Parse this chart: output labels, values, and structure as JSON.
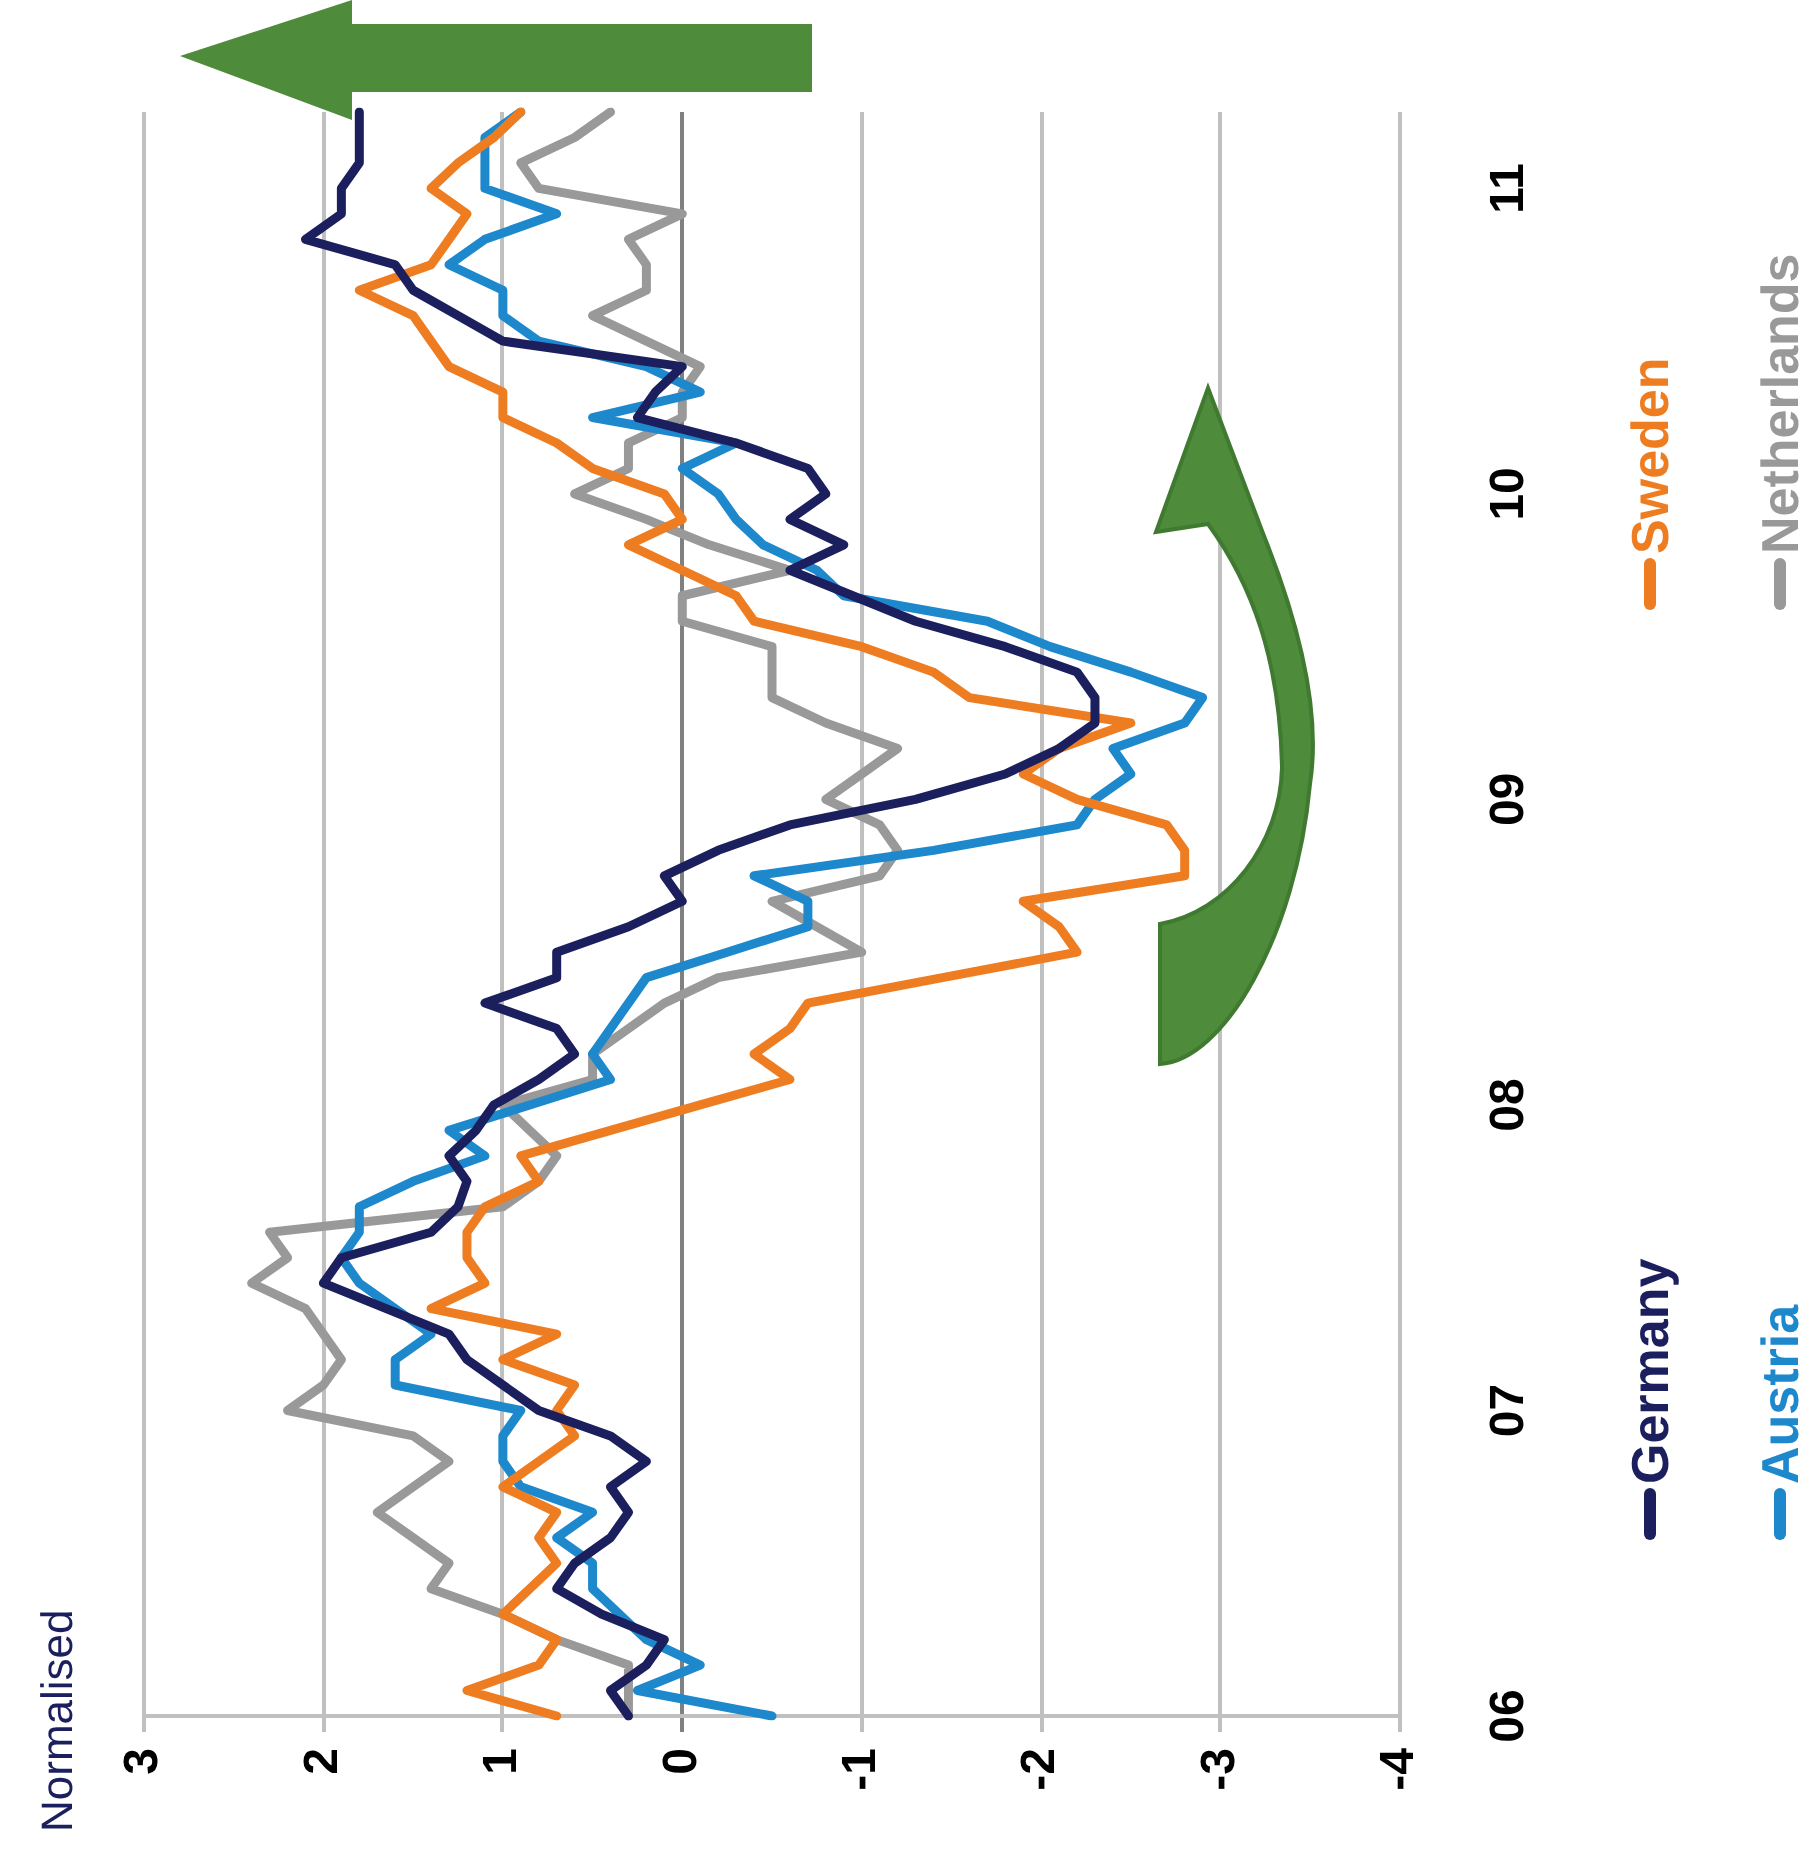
{
  "chart_data": {
    "type": "line",
    "orientation": "horizontal",
    "annotations": [
      "Normalised"
    ],
    "categories": [
      null,
      null,
      null,
      "11",
      null,
      null,
      null,
      null,
      null,
      null,
      null,
      null,
      null,
      null,
      null,
      "10",
      null,
      null,
      null,
      null,
      null,
      null,
      null,
      null,
      null,
      null,
      null,
      "09",
      null,
      null,
      null,
      null,
      null,
      null,
      null,
      null,
      null,
      null,
      null,
      "08",
      null,
      null,
      null,
      null,
      null,
      null,
      null,
      null,
      null,
      null,
      null,
      "07",
      null,
      null,
      null,
      null,
      null,
      null,
      null,
      null,
      null,
      null,
      null,
      "06"
    ],
    "series": [
      {
        "name": "Germany",
        "color": "#1b1f5e",
        "values": [
          1.8,
          1.8,
          1.8,
          1.9,
          1.9,
          2.1,
          1.6,
          1.5,
          1.25,
          1.0,
          0.0,
          0.15,
          0.25,
          -0.3,
          -0.7,
          -0.8,
          -0.6,
          -0.9,
          -0.6,
          -0.95,
          -1.3,
          -1.8,
          -2.2,
          -2.3,
          -2.3,
          -2.1,
          -1.8,
          -1.3,
          -0.6,
          -0.2,
          0.1,
          0.0,
          0.3,
          0.7,
          0.7,
          1.1,
          0.7,
          0.6,
          0.8,
          1.05,
          1.15,
          1.3,
          1.2,
          1.25,
          1.4,
          1.9,
          2.0,
          1.65,
          1.3,
          1.2,
          1.0,
          0.8,
          0.4,
          0.2,
          0.4,
          0.3,
          0.4,
          0.6,
          0.7,
          0.45,
          0.1,
          0.2,
          0.4,
          0.3
        ]
      },
      {
        "name": "Sweden",
        "color": "#ee7d22",
        "values": [
          0.9,
          1.05,
          1.25,
          1.4,
          1.2,
          1.3,
          1.4,
          1.8,
          1.5,
          1.4,
          1.3,
          1.0,
          1.0,
          0.7,
          0.5,
          0.1,
          0.0,
          0.3,
          0.0,
          -0.3,
          -0.4,
          -1.0,
          -1.4,
          -1.6,
          -2.5,
          -2.1,
          -1.9,
          -2.2,
          -2.7,
          -2.8,
          -2.8,
          -1.9,
          -2.1,
          -2.2,
          -1.45,
          -0.7,
          -0.6,
          -0.4,
          -0.6,
          -0.1,
          0.4,
          0.9,
          0.8,
          1.1,
          1.2,
          1.2,
          1.1,
          1.4,
          0.7,
          1.0,
          0.6,
          0.7,
          0.6,
          0.8,
          1.0,
          0.7,
          0.8,
          0.7,
          0.85,
          1.0,
          0.7,
          0.8,
          1.2,
          0.7
        ]
      },
      {
        "name": "Austria",
        "color": "#1e88cd",
        "values": [
          0.9,
          1.1,
          1.1,
          1.1,
          0.7,
          1.1,
          1.3,
          1.0,
          1.0,
          0.8,
          0.2,
          -0.1,
          0.5,
          -0.3,
          0.0,
          -0.2,
          -0.3,
          -0.45,
          -0.75,
          -0.9,
          -1.7,
          -2.05,
          -2.5,
          -2.9,
          -2.8,
          -2.4,
          -2.5,
          -2.3,
          -2.2,
          -1.4,
          -0.4,
          -0.7,
          -0.7,
          -0.25,
          0.2,
          0.3,
          0.4,
          0.5,
          0.4,
          0.85,
          1.3,
          1.1,
          1.5,
          1.8,
          1.8,
          1.9,
          1.8,
          1.6,
          1.4,
          1.6,
          1.6,
          0.9,
          1.0,
          1.0,
          0.9,
          0.5,
          0.7,
          0.5,
          0.5,
          0.35,
          0.2,
          -0.1,
          0.25,
          -0.5
        ]
      },
      {
        "name": "Netherlands",
        "color": "#999999",
        "values": [
          0.4,
          0.6,
          0.9,
          0.8,
          0.0,
          0.3,
          0.2,
          0.2,
          0.5,
          0.2,
          -0.1,
          0.0,
          0.0,
          0.3,
          0.3,
          0.6,
          0.2,
          -0.15,
          -0.6,
          0.0,
          0.0,
          -0.5,
          -0.5,
          -0.5,
          -0.8,
          -1.2,
          -1.0,
          -0.8,
          -1.1,
          -1.2,
          -1.1,
          -0.5,
          -0.75,
          -1.0,
          -0.2,
          0.1,
          0.3,
          0.5,
          0.5,
          1.0,
          0.85,
          0.7,
          0.8,
          1.0,
          2.3,
          2.2,
          2.4,
          2.1,
          2.0,
          1.9,
          2.0,
          2.2,
          1.5,
          1.3,
          1.5,
          1.7,
          1.5,
          1.3,
          1.4,
          1.0,
          0.7,
          0.3,
          0.3,
          0.3
        ]
      }
    ],
    "xlim": [
      3,
      -4
    ],
    "xticks": [
      3,
      2,
      1,
      0,
      -1,
      -2,
      -3,
      -4
    ],
    "grid": "x",
    "legend": "right",
    "marker": "none",
    "line_style": "solid"
  }
}
